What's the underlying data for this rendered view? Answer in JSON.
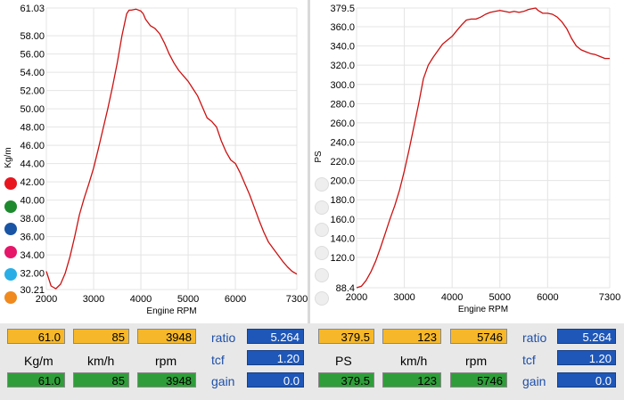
{
  "colors": {
    "curve": "#cc1111",
    "grid": "#e4e4e4",
    "cell_yellow": "#f6b82a",
    "cell_green": "#2f9e3a",
    "cell_blue": "#1e57b8"
  },
  "legend_dots_left": [
    {
      "name": "red-dot",
      "color": "#e8161f"
    },
    {
      "name": "green-dot",
      "color": "#1e8a2e"
    },
    {
      "name": "blue-dot",
      "color": "#1a55a5"
    },
    {
      "name": "pink-dot",
      "color": "#e6166a"
    },
    {
      "name": "cyan-dot",
      "color": "#2aaee6"
    },
    {
      "name": "orange-dot",
      "color": "#f08a1e"
    }
  ],
  "legend_dots_right": [
    {
      "name": "empty-dot",
      "color": "#eeeeee"
    },
    {
      "name": "empty-dot",
      "color": "#eeeeee"
    },
    {
      "name": "empty-dot",
      "color": "#eeeeee"
    },
    {
      "name": "empty-dot",
      "color": "#eeeeee"
    },
    {
      "name": "empty-dot",
      "color": "#eeeeee"
    },
    {
      "name": "empty-dot",
      "color": "#eeeeee"
    }
  ],
  "chart_data": [
    {
      "type": "line",
      "title": "",
      "xlabel": "Engine RPM",
      "ylabel": "Kg/m",
      "xlim": [
        2000,
        7300
      ],
      "ylim": [
        30.21,
        61.03
      ],
      "xticks": [
        "2000",
        "3000",
        "4000",
        "5000",
        "6000",
        "7300"
      ],
      "yticks": [
        "61.03",
        "58.00",
        "56.00",
        "54.00",
        "52.00",
        "50.00",
        "48.00",
        "46.00",
        "44.00",
        "42.00",
        "40.00",
        "38.00",
        "36.00",
        "34.00",
        "32.00",
        "30.21"
      ],
      "grid": true,
      "series": [
        {
          "x": [
            2000,
            2100,
            2200,
            2300,
            2400,
            2500,
            2600,
            2700,
            2800,
            2900,
            3000,
            3100,
            3200,
            3300,
            3400,
            3500,
            3600,
            3700,
            3750,
            3800,
            3900,
            4000,
            4050,
            4100,
            4200,
            4300,
            4400,
            4500,
            4600,
            4700,
            4800,
            4900,
            5000,
            5100,
            5200,
            5300,
            5400,
            5500,
            5600,
            5700,
            5800,
            5900,
            6000,
            6100,
            6200,
            6300,
            6400,
            6500,
            6600,
            6700,
            6800,
            6900,
            7000,
            7100,
            7200,
            7300
          ],
          "y": [
            32.2,
            30.6,
            30.3,
            30.8,
            32.0,
            33.8,
            36.0,
            38.4,
            40.2,
            41.8,
            43.5,
            45.6,
            47.8,
            50.0,
            52.4,
            55.0,
            58.0,
            60.4,
            60.8,
            60.8,
            60.9,
            60.7,
            60.4,
            59.8,
            59.1,
            58.8,
            58.2,
            57.2,
            56.0,
            55.0,
            54.2,
            53.6,
            53.0,
            52.2,
            51.4,
            50.2,
            49.0,
            48.6,
            48.0,
            46.5,
            45.3,
            44.4,
            44.0,
            43.0,
            41.8,
            40.6,
            39.2,
            37.8,
            36.5,
            35.4,
            34.7,
            34.0,
            33.3,
            32.7,
            32.2,
            31.9
          ]
        }
      ]
    },
    {
      "type": "line",
      "title": "",
      "xlabel": "Engine RPM",
      "ylabel": "PS",
      "xlim": [
        2000,
        7300
      ],
      "ylim": [
        88.4,
        379.5
      ],
      "xticks": [
        "2000",
        "3000",
        "4000",
        "5000",
        "6000",
        "7300"
      ],
      "yticks": [
        "379.5",
        "360.0",
        "340.0",
        "320.0",
        "300.0",
        "280.0",
        "260.0",
        "240.0",
        "220.0",
        "200.0",
        "180.0",
        "160.0",
        "140.0",
        "120.0",
        "88.4"
      ],
      "grid": true,
      "series": [
        {
          "x": [
            2000,
            2100,
            2200,
            2300,
            2400,
            2500,
            2600,
            2700,
            2800,
            2900,
            3000,
            3100,
            3200,
            3300,
            3400,
            3500,
            3600,
            3700,
            3800,
            3900,
            4000,
            4100,
            4200,
            4300,
            4400,
            4500,
            4600,
            4700,
            4800,
            4900,
            5000,
            5100,
            5200,
            5300,
            5400,
            5500,
            5600,
            5700,
            5750,
            5800,
            5900,
            6000,
            6100,
            6200,
            6300,
            6400,
            6500,
            6600,
            6700,
            6800,
            6900,
            7000,
            7100,
            7200,
            7300
          ],
          "y": [
            88.4,
            90.0,
            96.0,
            105.0,
            116.0,
            130.0,
            145.0,
            160.0,
            174.0,
            190.0,
            210.0,
            232.0,
            256.0,
            280.0,
            306.0,
            320.0,
            328.0,
            335.0,
            342.0,
            346.0,
            350.0,
            356.0,
            362.0,
            367.0,
            368.0,
            368.0,
            370.0,
            373.0,
            375.0,
            376.0,
            377.0,
            376.0,
            375.0,
            376.0,
            375.0,
            376.0,
            378.0,
            379.0,
            379.5,
            377.0,
            374.0,
            374.0,
            373.0,
            370.0,
            365.0,
            358.0,
            348.0,
            340.0,
            336.0,
            334.0,
            332.0,
            331.0,
            329.0,
            327.0,
            327.0
          ]
        }
      ]
    }
  ],
  "readout_left": {
    "top_values": [
      "61.0",
      "85",
      "3948"
    ],
    "units": [
      "Kg/m",
      "km/h",
      "rpm"
    ],
    "bottom_values": [
      "61.0",
      "85",
      "3948"
    ],
    "labels": [
      "ratio",
      "tcf",
      "gain"
    ],
    "label_values": [
      "5.264",
      "1.20",
      "0.0"
    ]
  },
  "readout_right": {
    "top_values": [
      "379.5",
      "123",
      "5746"
    ],
    "units": [
      "PS",
      "km/h",
      "rpm"
    ],
    "bottom_values": [
      "379.5",
      "123",
      "5746"
    ],
    "labels": [
      "ratio",
      "tcf",
      "gain"
    ],
    "label_values": [
      "5.264",
      "1.20",
      "0.0"
    ]
  }
}
